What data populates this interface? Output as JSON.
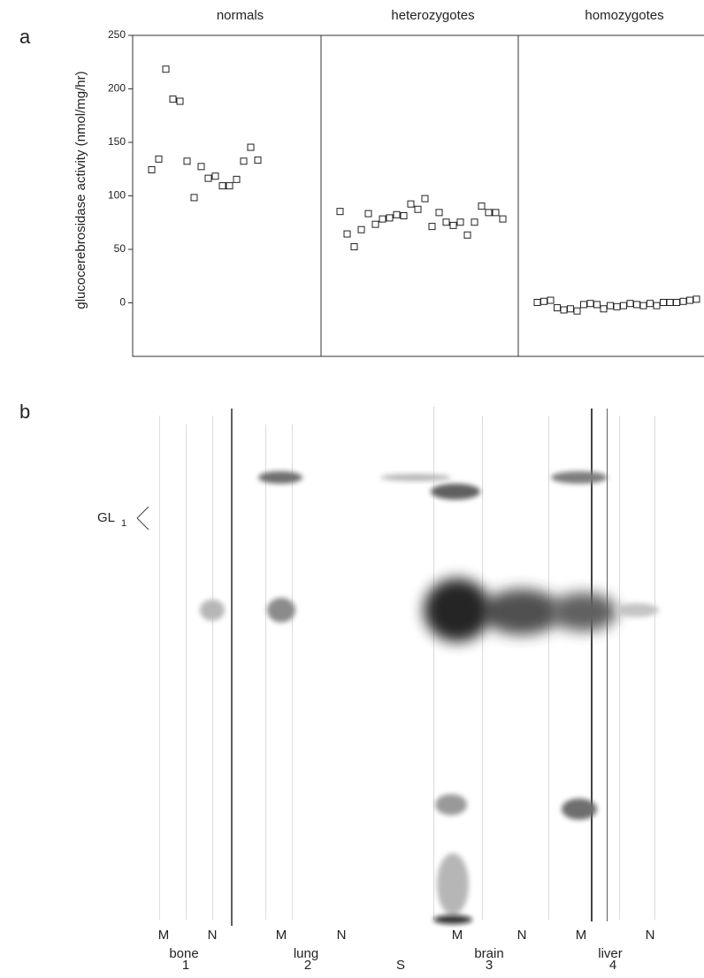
{
  "panel_a": {
    "label": "a"
  },
  "chart_data": {
    "type": "scatter",
    "y_label": "glucocerebrosidase activity (nmol/mg/hr)",
    "ylim": [
      -50,
      250
    ],
    "yticks": [
      0,
      50,
      100,
      150,
      200,
      250
    ],
    "series": [
      {
        "name": "normals",
        "values": [
          124,
          134,
          218,
          190,
          188,
          132,
          98,
          127,
          116,
          118,
          109,
          109,
          115,
          132,
          145,
          133
        ]
      },
      {
        "name": "heterozygotes",
        "values": [
          85,
          64,
          52,
          68,
          83,
          73,
          78,
          79,
          82,
          81,
          92,
          87,
          97,
          71,
          84,
          75,
          72,
          75,
          63,
          75,
          90,
          84,
          84,
          78
        ]
      },
      {
        "name": "homozygotes",
        "values": [
          0,
          1,
          2,
          -5,
          -7,
          -6,
          -8,
          -2,
          -1,
          -2,
          -6,
          -3,
          -4,
          -3,
          -1,
          -2,
          -3,
          -1,
          -3,
          0,
          0,
          0,
          1,
          2,
          3
        ]
      }
    ]
  },
  "panel_b": {
    "label": "b",
    "band_label": "GL",
    "band_label_subscript": "1",
    "lanes": [
      {
        "left": "M",
        "right": "N",
        "tissue": "bone",
        "number": "1"
      },
      {
        "left": "M",
        "right": "N",
        "tissue": "lung",
        "number": "2"
      },
      {
        "left": "M",
        "right": "N",
        "tissue": "brain",
        "number": "3"
      },
      {
        "left": "M",
        "right": "N",
        "tissue": "liver",
        "number": "4"
      }
    ],
    "standard": "S"
  }
}
